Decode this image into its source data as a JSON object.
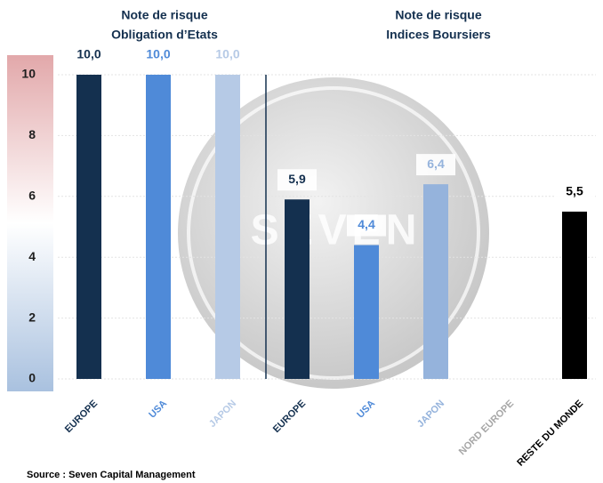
{
  "chart_data": {
    "type": "bar",
    "group_titles": [
      [
        "Note de risque",
        "Obligation d’Etats"
      ],
      [
        "Note de risque",
        "Indices Boursiers"
      ]
    ],
    "categories": [
      "EUROPE",
      "USA",
      "JAPON",
      "EUROPE",
      "USA",
      "JAPON",
      "NORD EUROPE",
      "RESTE DU MONDE"
    ],
    "values": [
      10,
      10,
      10,
      5.9,
      4.4,
      6.4,
      null,
      5.5
    ],
    "value_labels": [
      "10,0",
      "10,0",
      "10,0",
      "5,9",
      "4,4",
      "6,4",
      null,
      "5,5"
    ],
    "colors": [
      "#14304f",
      "#4f8ad8",
      "#b6cae6",
      "#14304f",
      "#4f8ad8",
      "#95b3dc",
      "#a6a6a6",
      "#000000"
    ],
    "label_colors": [
      "#14304f",
      "#4f8ad8",
      "#b6cae6",
      "#14304f",
      "#4f8ad8",
      "#95b3dc",
      "#a6a6a6",
      "#000000"
    ],
    "ylim": [
      0,
      10
    ],
    "yticks": [
      0,
      2,
      4,
      6,
      8,
      10
    ],
    "grid": true,
    "logo_text": "SEVEN",
    "source": "Source : Seven Capital Management"
  }
}
